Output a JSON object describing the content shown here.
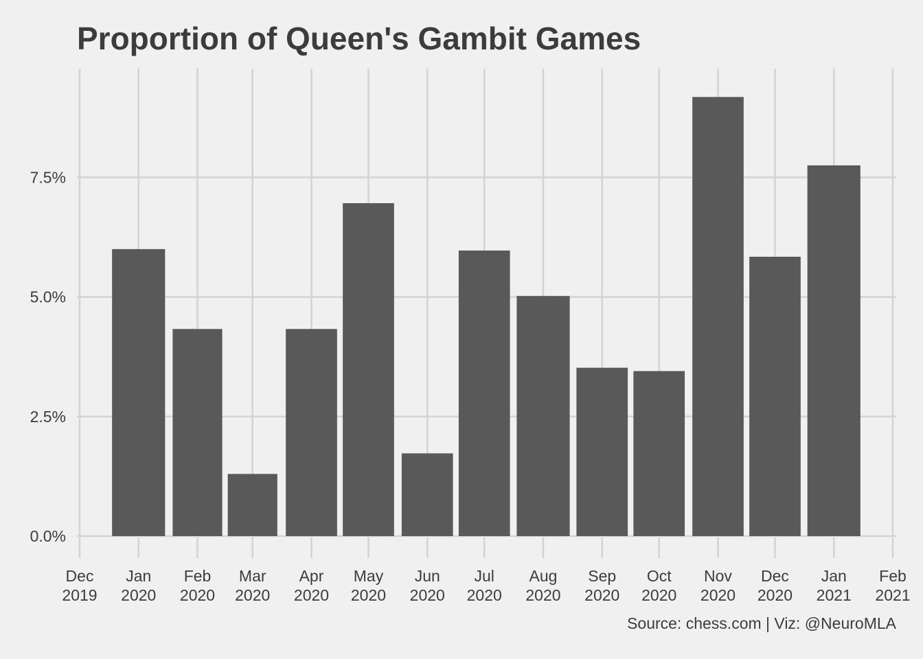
{
  "chart_data": {
    "type": "bar",
    "title": "Proportion of Queen's Gambit Games",
    "xlabel": "",
    "ylabel": "",
    "caption": "Source: chess.com | Viz: @NeuroMLA",
    "categories": [
      "2020-01",
      "2020-02",
      "2020-03",
      "2020-04",
      "2020-05",
      "2020-06",
      "2020-07",
      "2020-08",
      "2020-09",
      "2020-10",
      "2020-11",
      "2020-12",
      "2021-01"
    ],
    "values": [
      6.0,
      4.33,
      1.3,
      4.33,
      6.96,
      1.73,
      5.97,
      5.02,
      3.52,
      3.45,
      9.18,
      5.84,
      7.75
    ],
    "value_unit": "%",
    "ylim": [
      0,
      9.6
    ],
    "y_ticks": [
      {
        "value": 0.0,
        "label": "0.0%"
      },
      {
        "value": 2.5,
        "label": "2.5%"
      },
      {
        "value": 5.0,
        "label": "5.0%"
      },
      {
        "value": 7.5,
        "label": "7.5%"
      }
    ],
    "x_ticks": [
      {
        "date": "2019-12-01",
        "month": "Dec",
        "year": "2019"
      },
      {
        "date": "2020-01-01",
        "month": "Jan",
        "year": "2020"
      },
      {
        "date": "2020-02-01",
        "month": "Feb",
        "year": "2020"
      },
      {
        "date": "2020-03-01",
        "month": "Mar",
        "year": "2020"
      },
      {
        "date": "2020-04-01",
        "month": "Apr",
        "year": "2020"
      },
      {
        "date": "2020-05-01",
        "month": "May",
        "year": "2020"
      },
      {
        "date": "2020-06-01",
        "month": "Jun",
        "year": "2020"
      },
      {
        "date": "2020-07-01",
        "month": "Jul",
        "year": "2020"
      },
      {
        "date": "2020-08-01",
        "month": "Aug",
        "year": "2020"
      },
      {
        "date": "2020-09-01",
        "month": "Sep",
        "year": "2020"
      },
      {
        "date": "2020-10-01",
        "month": "Oct",
        "year": "2020"
      },
      {
        "date": "2020-11-01",
        "month": "Nov",
        "year": "2020"
      },
      {
        "date": "2020-12-01",
        "month": "Dec",
        "year": "2020"
      },
      {
        "date": "2021-01-01",
        "month": "Jan",
        "year": "2021"
      },
      {
        "date": "2021-02-01",
        "month": "Feb",
        "year": "2021"
      }
    ],
    "grid": true,
    "legend": "none",
    "bar_color": "#595959",
    "background_color": "#f0f0f0",
    "grid_color": "#d3d3d3"
  }
}
